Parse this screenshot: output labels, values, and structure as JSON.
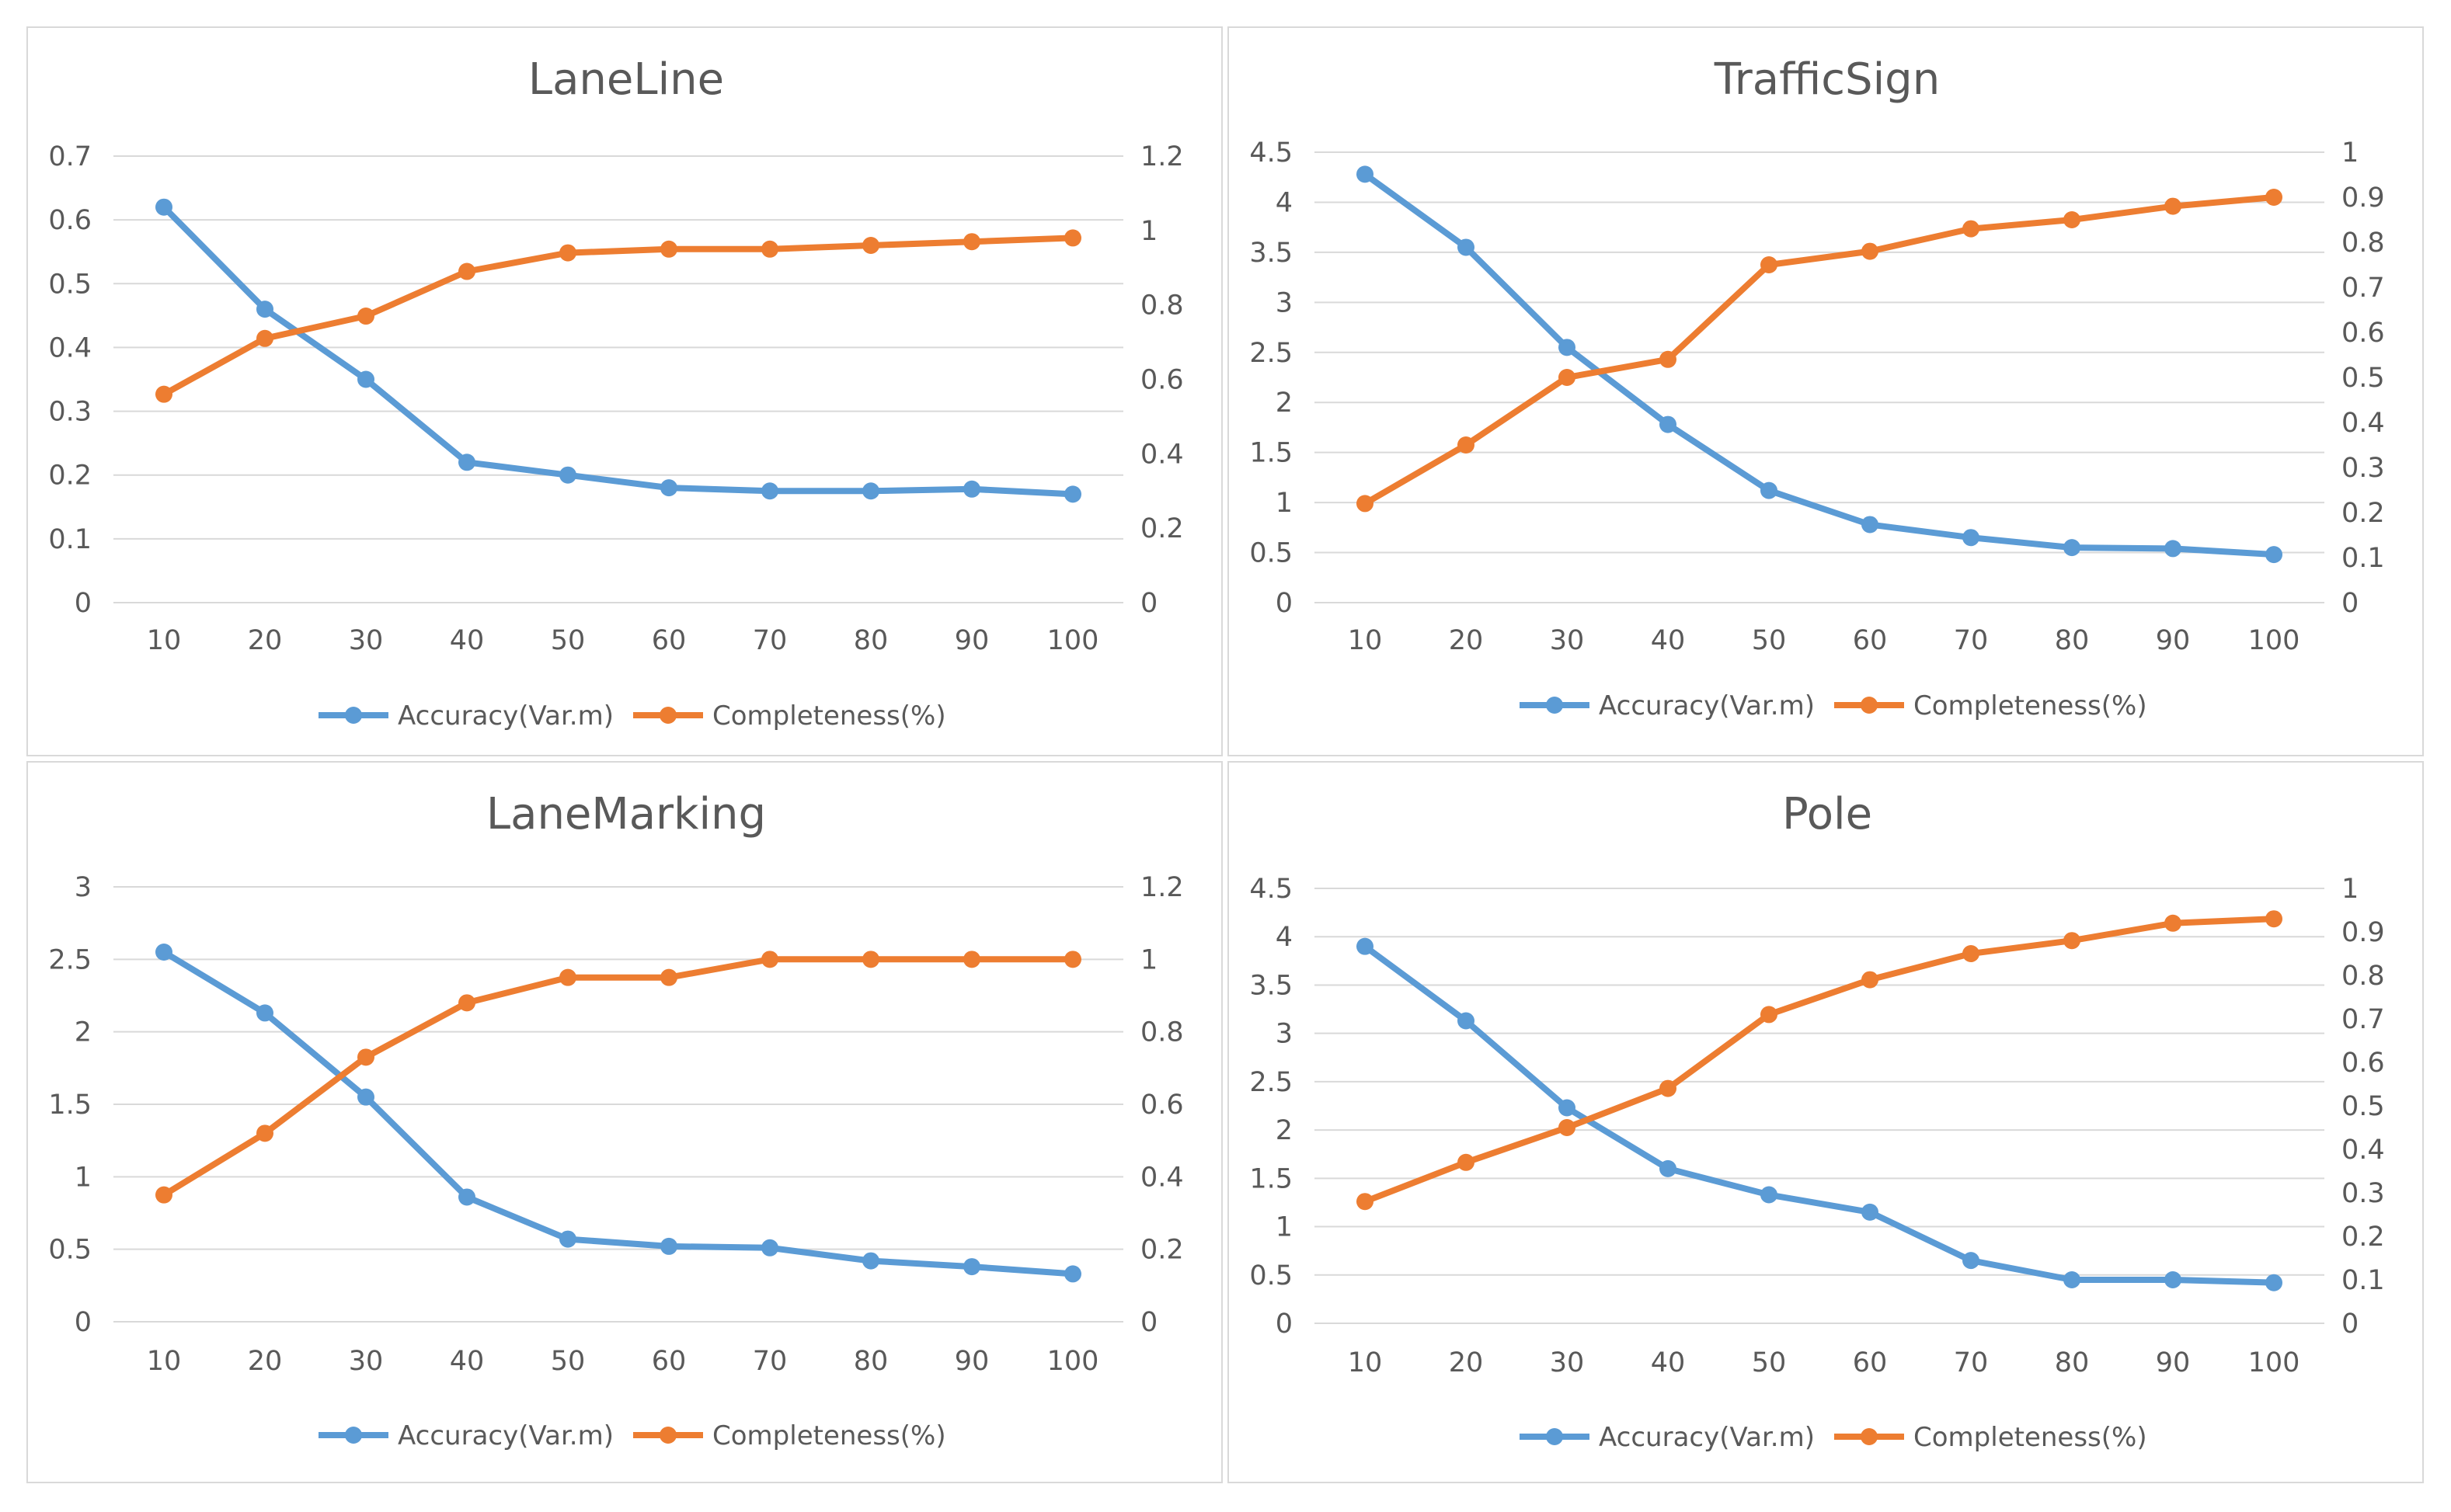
{
  "chart_data": [
    {
      "type": "line",
      "title": "LaneLine",
      "categories": [
        "10",
        "20",
        "30",
        "40",
        "50",
        "60",
        "70",
        "80",
        "90",
        "100"
      ],
      "series": [
        {
          "name": "Accuracy(Var.m)",
          "axis": "left",
          "color": "#5B9BD5",
          "values": [
            0.62,
            0.46,
            0.35,
            0.22,
            0.2,
            0.18,
            0.175,
            0.175,
            0.178,
            0.17
          ]
        },
        {
          "name": "Completeness(%)",
          "axis": "right",
          "color": "#ED7D31",
          "values": [
            0.56,
            0.71,
            0.77,
            0.89,
            0.94,
            0.95,
            0.95,
            0.96,
            0.97,
            0.98
          ]
        }
      ],
      "y_left": {
        "min": 0,
        "max": 0.7,
        "ticks": [
          "0",
          "0.1",
          "0.2",
          "0.3",
          "0.4",
          "0.5",
          "0.6",
          "0.7"
        ]
      },
      "y_right": {
        "min": 0,
        "max": 1.2,
        "ticks": [
          "0",
          "0.2",
          "0.4",
          "0.6",
          "0.8",
          "1",
          "1.2"
        ]
      },
      "xlabel": "",
      "ylabel": "",
      "grid": true,
      "legend": "bottom"
    },
    {
      "type": "line",
      "title": "TrafficSign",
      "categories": [
        "10",
        "20",
        "30",
        "40",
        "50",
        "60",
        "70",
        "80",
        "90",
        "100"
      ],
      "series": [
        {
          "name": "Accuracy(Var.m)",
          "axis": "left",
          "color": "#5B9BD5",
          "values": [
            4.28,
            3.55,
            2.55,
            1.78,
            1.12,
            0.78,
            0.65,
            0.55,
            0.54,
            0.48
          ]
        },
        {
          "name": "Completeness(%)",
          "axis": "right",
          "color": "#ED7D31",
          "values": [
            0.22,
            0.35,
            0.5,
            0.54,
            0.75,
            0.78,
            0.83,
            0.85,
            0.88,
            0.9
          ]
        }
      ],
      "y_left": {
        "min": 0,
        "max": 4.5,
        "ticks": [
          "0",
          "0.5",
          "1",
          "1.5",
          "2",
          "2.5",
          "3",
          "3.5",
          "4",
          "4.5"
        ]
      },
      "y_right": {
        "min": 0,
        "max": 1,
        "ticks": [
          "0",
          "0.1",
          "0.2",
          "0.3",
          "0.4",
          "0.5",
          "0.6",
          "0.7",
          "0.8",
          "0.9",
          "1"
        ]
      },
      "xlabel": "",
      "ylabel": "",
      "grid": true,
      "legend": "bottom"
    },
    {
      "type": "line",
      "title": "LaneMarking",
      "categories": [
        "10",
        "20",
        "30",
        "40",
        "50",
        "60",
        "70",
        "80",
        "90",
        "100"
      ],
      "series": [
        {
          "name": "Accuracy(Var.m)",
          "axis": "left",
          "color": "#5B9BD5",
          "values": [
            2.55,
            2.13,
            1.55,
            0.86,
            0.57,
            0.52,
            0.51,
            0.42,
            0.38,
            0.33
          ]
        },
        {
          "name": "Completeness(%)",
          "axis": "right",
          "color": "#ED7D31",
          "values": [
            0.35,
            0.52,
            0.73,
            0.88,
            0.95,
            0.95,
            1.0,
            1.0,
            1.0,
            1.0
          ]
        }
      ],
      "y_left": {
        "min": 0,
        "max": 3,
        "ticks": [
          "0",
          "0.5",
          "1",
          "1.5",
          "2",
          "2.5",
          "3"
        ]
      },
      "y_right": {
        "min": 0,
        "max": 1.2,
        "ticks": [
          "0",
          "0.2",
          "0.4",
          "0.6",
          "0.8",
          "1",
          "1.2"
        ]
      },
      "xlabel": "",
      "ylabel": "",
      "grid": true,
      "legend": "bottom"
    },
    {
      "type": "line",
      "title": "Pole",
      "categories": [
        "10",
        "20",
        "30",
        "40",
        "50",
        "60",
        "70",
        "80",
        "90",
        "100"
      ],
      "series": [
        {
          "name": "Accuracy(Var.m)",
          "axis": "left",
          "color": "#5B9BD5",
          "values": [
            3.9,
            3.13,
            2.23,
            1.6,
            1.33,
            1.15,
            0.65,
            0.45,
            0.45,
            0.42
          ]
        },
        {
          "name": "Completeness(%)",
          "axis": "right",
          "color": "#ED7D31",
          "values": [
            0.28,
            0.37,
            0.45,
            0.54,
            0.71,
            0.79,
            0.85,
            0.88,
            0.92,
            0.93
          ]
        }
      ],
      "y_left": {
        "min": 0,
        "max": 4.5,
        "ticks": [
          "0",
          "0.5",
          "1",
          "1.5",
          "2",
          "2.5",
          "3",
          "3.5",
          "4",
          "4.5"
        ]
      },
      "y_right": {
        "min": 0,
        "max": 1,
        "ticks": [
          "0",
          "0.1",
          "0.2",
          "0.3",
          "0.4",
          "0.5",
          "0.6",
          "0.7",
          "0.8",
          "0.9",
          "1"
        ]
      },
      "xlabel": "",
      "ylabel": "",
      "grid": true,
      "legend": "bottom"
    }
  ]
}
